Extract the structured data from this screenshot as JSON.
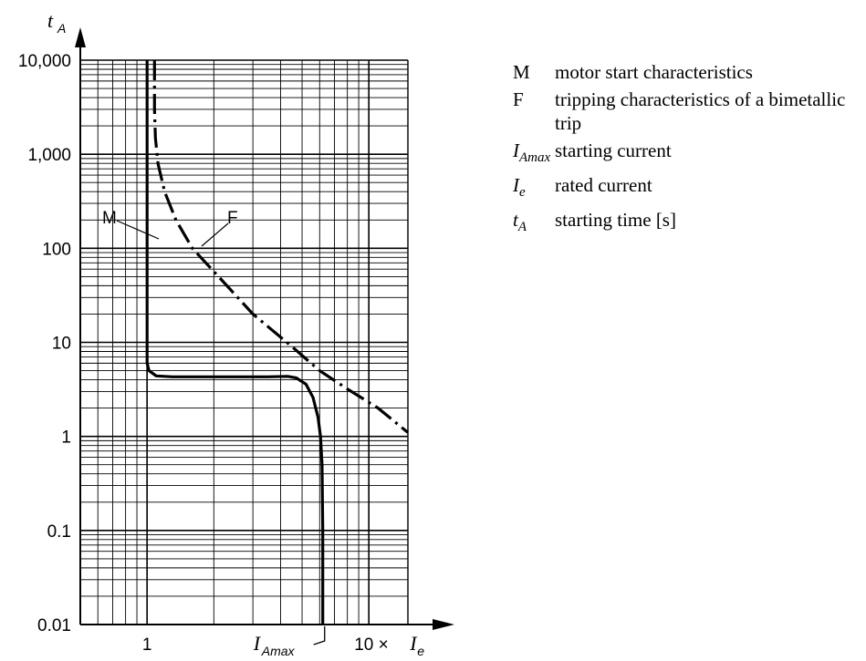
{
  "chart_data": {
    "type": "line",
    "x_axis": {
      "scale": "log",
      "range": [
        0.5,
        15
      ],
      "tick_labels": [
        {
          "value": 1,
          "label": "1"
        },
        {
          "value": 10,
          "label": "10 ×"
        }
      ],
      "unit_symbol": "I",
      "unit_subscript": "e",
      "marker": {
        "value": 6.2,
        "symbol": "I",
        "subscript": "Amax"
      }
    },
    "y_axis": {
      "scale": "log",
      "range": [
        0.01,
        10000
      ],
      "symbol": "t",
      "subscript": "A",
      "tick_labels": [
        {
          "value": 10000,
          "label": "10,000"
        },
        {
          "value": 1000,
          "label": "1,000"
        },
        {
          "value": 100,
          "label": "100"
        },
        {
          "value": 10,
          "label": "10"
        },
        {
          "value": 1,
          "label": "1"
        },
        {
          "value": 0.1,
          "label": "0.1"
        },
        {
          "value": 0.01,
          "label": "0.01"
        }
      ]
    },
    "grid": true,
    "series": [
      {
        "name": "M",
        "style": "solid",
        "points": [
          [
            1.0,
            10000
          ],
          [
            1.0,
            6
          ],
          [
            1.02,
            5.0
          ],
          [
            1.1,
            4.4
          ],
          [
            1.3,
            4.3
          ],
          [
            2.0,
            4.3
          ],
          [
            3.5,
            4.3
          ],
          [
            4.3,
            4.35
          ],
          [
            4.7,
            4.2
          ],
          [
            5.2,
            3.6
          ],
          [
            5.6,
            2.6
          ],
          [
            5.9,
            1.6
          ],
          [
            6.05,
            1.0
          ],
          [
            6.15,
            0.5
          ],
          [
            6.2,
            0.1
          ],
          [
            6.2,
            0.01
          ]
        ]
      },
      {
        "name": "F",
        "style": "dash-dot",
        "points": [
          [
            1.08,
            10000
          ],
          [
            1.08,
            3000
          ],
          [
            1.09,
            1500
          ],
          [
            1.12,
            800
          ],
          [
            1.2,
            400
          ],
          [
            1.35,
            200
          ],
          [
            1.6,
            100
          ],
          [
            2.1,
            50
          ],
          [
            3.0,
            20
          ],
          [
            4.5,
            9
          ],
          [
            6.0,
            5
          ],
          [
            8.0,
            3.2
          ],
          [
            11.0,
            2.0
          ],
          [
            15.0,
            1.1
          ]
        ]
      }
    ],
    "legend": [
      {
        "symbol": "M",
        "sub": "",
        "italic": false,
        "text": "motor start characteristics"
      },
      {
        "symbol": "F",
        "sub": "",
        "italic": false,
        "text": "tripping characteristics of a bimetallic trip"
      },
      {
        "symbol": "I",
        "sub": "Amax",
        "italic": true,
        "text": "starting current"
      },
      {
        "symbol": "I",
        "sub": "e",
        "italic": true,
        "text": "rated current"
      },
      {
        "symbol": "t",
        "sub": "A",
        "italic": true,
        "text": "starting time [s]"
      }
    ]
  }
}
